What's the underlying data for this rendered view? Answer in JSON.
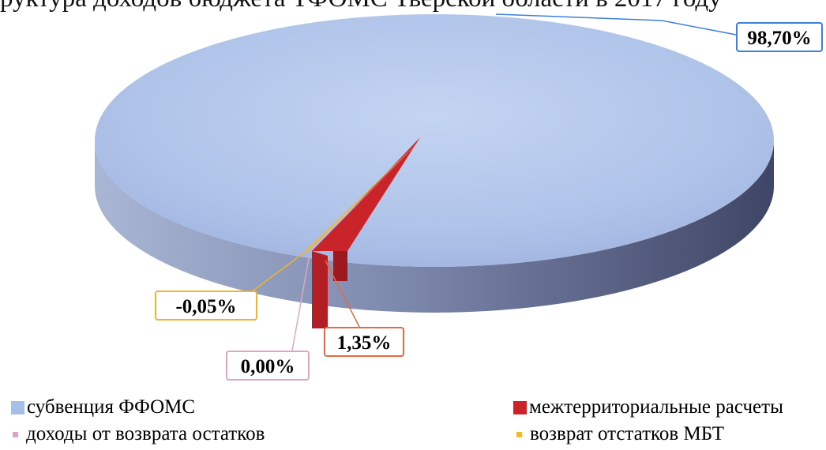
{
  "header_fragment": "руктура доходов бюджета ТФОМС Тверской области в 2017 году",
  "chart_data": {
    "type": "pie",
    "title": "",
    "three_d": true,
    "legend_position": "bottom",
    "categories": [
      "субвенция ФФОМС",
      "межтерриториальные расчеты",
      "доходы от возврата остатков",
      "возврат отстатков МБТ"
    ],
    "values": [
      98.7,
      1.35,
      0.0,
      -0.05
    ],
    "value_labels": [
      "98,70%",
      "1,35%",
      "0,00%",
      "-0,05%"
    ],
    "colors": [
      "#a6bfe6",
      "#c8242a",
      "#d4a6bf",
      "#f2b833"
    ]
  }
}
